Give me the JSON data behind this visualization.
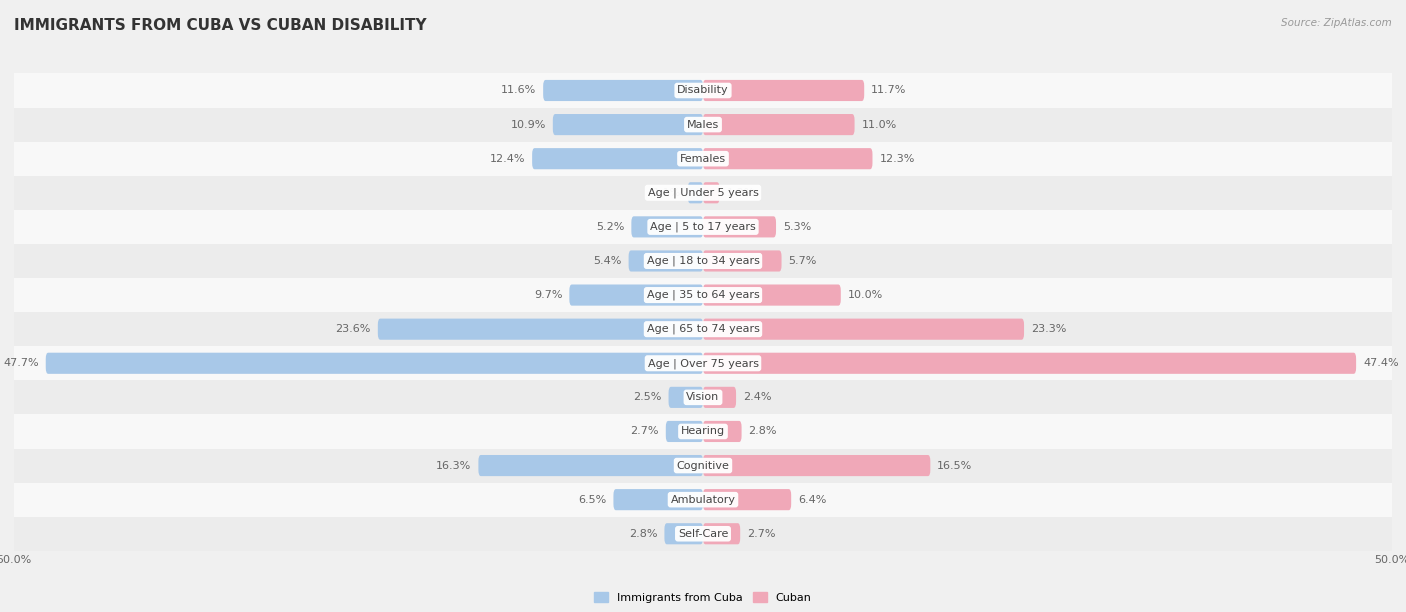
{
  "title": "IMMIGRANTS FROM CUBA VS CUBAN DISABILITY",
  "source": "Source: ZipAtlas.com",
  "categories": [
    "Disability",
    "Males",
    "Females",
    "Age | Under 5 years",
    "Age | 5 to 17 years",
    "Age | 18 to 34 years",
    "Age | 35 to 64 years",
    "Age | 65 to 74 years",
    "Age | Over 75 years",
    "Vision",
    "Hearing",
    "Cognitive",
    "Ambulatory",
    "Self-Care"
  ],
  "left_values": [
    11.6,
    10.9,
    12.4,
    1.1,
    5.2,
    5.4,
    9.7,
    23.6,
    47.7,
    2.5,
    2.7,
    16.3,
    6.5,
    2.8
  ],
  "right_values": [
    11.7,
    11.0,
    12.3,
    1.2,
    5.3,
    5.7,
    10.0,
    23.3,
    47.4,
    2.4,
    2.8,
    16.5,
    6.4,
    2.7
  ],
  "left_color": "#a8c8e8",
  "right_color": "#f0a8b8",
  "left_label": "Immigrants from Cuba",
  "right_label": "Cuban",
  "axis_max": 50.0,
  "background_color": "#f0f0f0",
  "title_fontsize": 11,
  "label_fontsize": 8,
  "value_fontsize": 8,
  "bar_height": 0.62,
  "row_background_even": "#f8f8f8",
  "row_background_odd": "#ececec"
}
